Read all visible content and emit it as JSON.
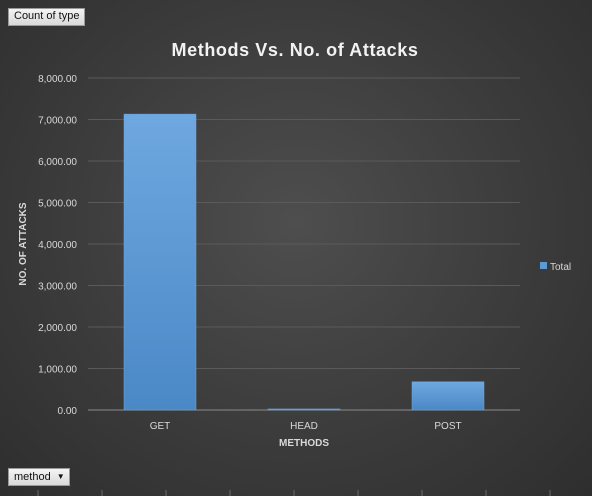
{
  "fields": {
    "values_field": "Count of type",
    "axis_field": "method",
    "axis_field_icon": "dropdown-arrow-icon"
  },
  "colors": {
    "bar": "#5b9bd5",
    "bar_light": "#6fa8e0",
    "gridline": "#5a5a5a",
    "axis_text": "#d9d9d9",
    "title": "#f2f2f2"
  },
  "chart_data": {
    "type": "bar",
    "title": "Methods Vs. No. of Attacks",
    "xlabel": "METHODS",
    "ylabel": "NO. OF ATTACKS",
    "categories": [
      "GET",
      "HEAD",
      "POST"
    ],
    "series": [
      {
        "name": "Total",
        "values": [
          7130,
          25,
          680
        ]
      }
    ],
    "ylim": [
      0,
      8000
    ],
    "yticks": [
      "0.00",
      "1,000.00",
      "2,000.00",
      "3,000.00",
      "4,000.00",
      "5,000.00",
      "6,000.00",
      "7,000.00",
      "8,000.00"
    ],
    "grid": true,
    "legend": "right"
  }
}
